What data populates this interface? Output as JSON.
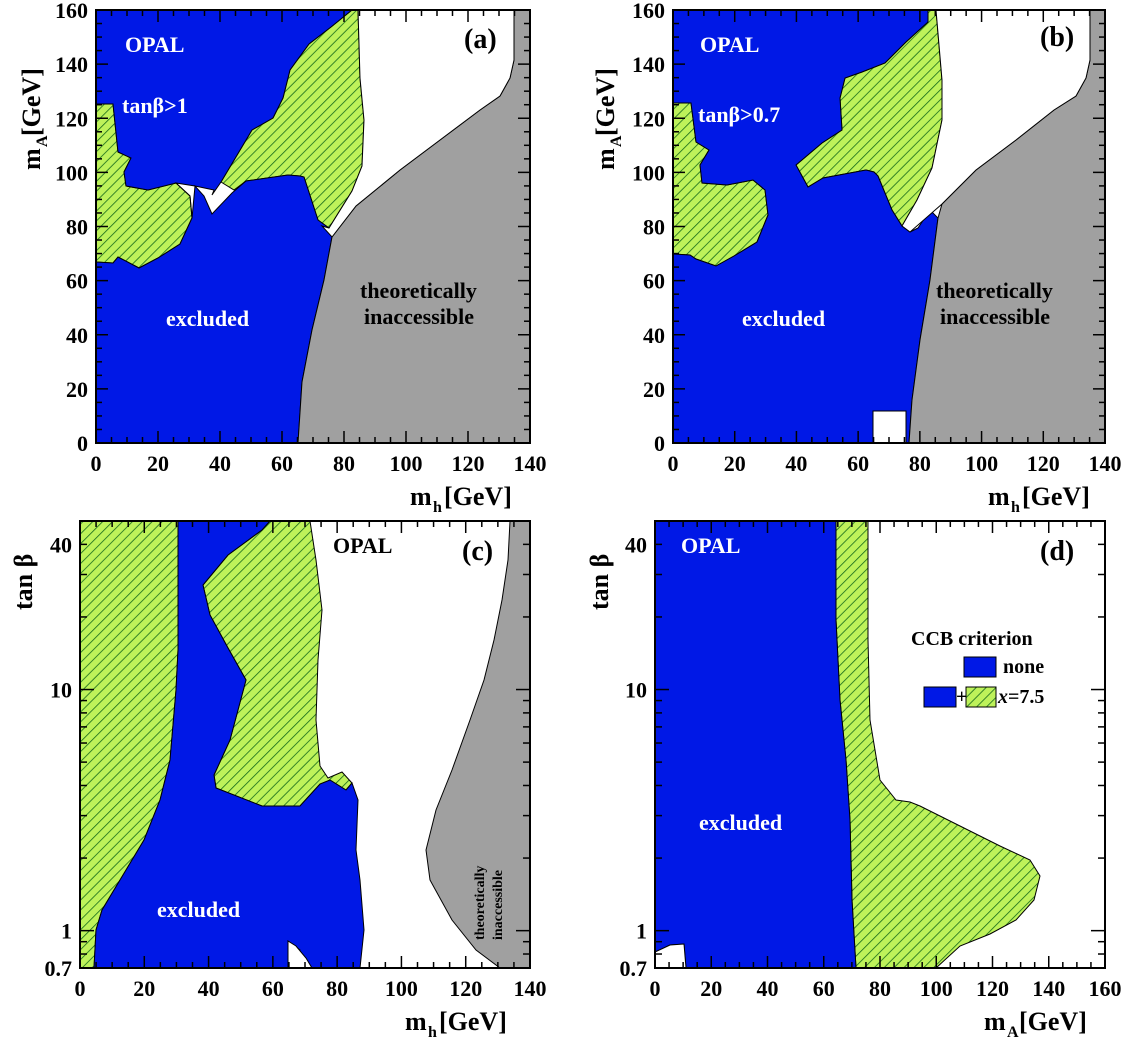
{
  "chart_data": [
    {
      "panel": "(a)",
      "type": "area",
      "x_axis": {
        "label": "m",
        "label_sub": "h",
        "label_unit": "[GeV]",
        "range": [
          0,
          140
        ],
        "ticks": [
          0,
          20,
          40,
          60,
          80,
          100,
          120,
          140
        ]
      },
      "y_axis": {
        "label": "m",
        "label_sub": "A",
        "label_unit": "[GeV]",
        "range": [
          0,
          160
        ],
        "ticks": [
          0,
          20,
          40,
          60,
          80,
          100,
          120,
          140,
          160
        ]
      },
      "annotations": {
        "experiment": "OPAL",
        "condition": "tanβ>1",
        "excluded": "excluded",
        "theory_line1": "theoretically",
        "theory_line2": "inaccessible"
      },
      "regions": [
        {
          "name": "excluded",
          "fill": "blue",
          "points": [
            [
              0,
              0
            ],
            [
              0,
              125
            ],
            [
              6,
              125
            ],
            [
              8,
              107
            ],
            [
              12,
              94
            ],
            [
              30,
              101
            ],
            [
              60,
              99
            ],
            [
              70,
              95
            ],
            [
              76,
              75
            ],
            [
              70,
              60
            ],
            [
              66,
              40
            ],
            [
              64,
              20
            ],
            [
              65,
              0
            ]
          ]
        },
        {
          "name": "excluded",
          "fill": "blue",
          "points": [
            [
              0,
              125
            ],
            [
              0,
              160
            ],
            [
              72,
              160
            ],
            [
              66,
              142
            ],
            [
              40,
              130
            ],
            [
              20,
              116
            ],
            [
              8,
              108
            ],
            [
              6,
              125
            ]
          ]
        },
        {
          "name": "excluded-upper",
          "fill": "blue",
          "points": [
            [
              20,
              160
            ],
            [
              72,
              160
            ],
            [
              72,
              154
            ],
            [
              60,
              150
            ],
            [
              46,
              139
            ],
            [
              28,
              117
            ],
            [
              14,
              98
            ],
            [
              8,
              94
            ],
            [
              4,
              104
            ],
            [
              6,
              125
            ],
            [
              20,
              130
            ]
          ]
        },
        {
          "name": "x=7.5",
          "fill": "hatched",
          "points": [
            [
              0,
              69
            ],
            [
              0,
              125
            ],
            [
              6,
              125
            ],
            [
              8,
              107
            ],
            [
              12,
              94
            ],
            [
              30,
              101
            ],
            [
              60,
              99
            ],
            [
              70,
              95
            ],
            [
              74,
              80
            ],
            [
              66,
              90
            ],
            [
              63,
              100
            ],
            [
              55,
              99
            ],
            [
              52,
              98
            ],
            [
              40,
              91
            ],
            [
              46,
              96
            ],
            [
              50,
              100
            ],
            [
              55,
              101
            ],
            [
              60,
              100
            ],
            [
              70,
              96
            ],
            [
              70,
              60
            ]
          ]
        },
        {
          "name": "x=7.5",
          "fill": "hatched",
          "points": [
            [
              0,
              69
            ],
            [
              6,
              67
            ],
            [
              13,
              64
            ],
            [
              19,
              67
            ],
            [
              28,
              76
            ],
            [
              30,
              87
            ],
            [
              27,
              92
            ],
            [
              16,
              95
            ],
            [
              10,
              96
            ],
            [
              8,
              98
            ],
            [
              10,
              104
            ],
            [
              6,
              110
            ],
            [
              6,
              125
            ],
            [
              0,
              125
            ]
          ]
        },
        {
          "name": "x=7.5",
          "fill": "hatched",
          "points": [
            [
              47,
              92
            ],
            [
              43,
              96
            ],
            [
              60,
              99
            ],
            [
              64,
              99
            ],
            [
              68,
              98
            ],
            [
              70,
              95
            ],
            [
              73,
              79
            ],
            [
              75,
              79
            ],
            [
              78,
              83
            ],
            [
              83,
              91
            ],
            [
              87,
              110
            ],
            [
              86,
              125
            ],
            [
              86,
              160
            ],
            [
              80,
              160
            ],
            [
              75,
              152
            ],
            [
              69,
              143
            ],
            [
              68,
              131
            ],
            [
              64,
              126
            ],
            [
              64,
              113
            ],
            [
              50,
              103
            ],
            [
              47,
              92
            ]
          ]
        },
        {
          "name": "theoretically-inaccessible",
          "fill": "gray",
          "points": [
            [
              65,
              0
            ],
            [
              140,
              0
            ],
            [
              140,
              135
            ],
            [
              134,
              135
            ],
            [
              130,
              124
            ],
            [
              108,
              110
            ],
            [
              86,
              93
            ],
            [
              76,
              75
            ],
            [
              70,
              60
            ],
            [
              66,
              40
            ],
            [
              64,
              20
            ]
          ]
        }
      ]
    },
    {
      "panel": "(b)",
      "type": "area",
      "x_axis": {
        "label": "m",
        "label_sub": "h",
        "label_unit": "[GeV]",
        "range": [
          0,
          140
        ],
        "ticks": [
          0,
          20,
          40,
          60,
          80,
          100,
          120,
          140
        ]
      },
      "y_axis": {
        "label": "m",
        "label_sub": "A",
        "label_unit": "[GeV]",
        "range": [
          0,
          160
        ],
        "ticks": [
          0,
          20,
          40,
          60,
          80,
          100,
          120,
          140,
          160
        ]
      },
      "annotations": {
        "experiment": "OPAL",
        "condition": "tanβ>0.7",
        "excluded": "excluded",
        "theory_line1": "theoretically",
        "theory_line2": "inaccessible"
      }
    },
    {
      "panel": "(c)",
      "type": "area",
      "x_axis": {
        "label": "m",
        "label_sub": "h",
        "label_unit": "[GeV]",
        "range": [
          0,
          140
        ],
        "ticks": [
          0,
          20,
          40,
          60,
          80,
          100,
          120,
          140
        ]
      },
      "y_axis": {
        "label": "tan β",
        "scale": "log",
        "range": [
          0.7,
          50
        ],
        "ticks": [
          0.7,
          1,
          10,
          40
        ],
        "tick_labels": [
          "0.7",
          "1",
          "10",
          "40"
        ]
      },
      "annotations": {
        "experiment": "OPAL",
        "excluded": "excluded",
        "theory_line1": "theoretically",
        "theory_line2": "inaccessible"
      }
    },
    {
      "panel": "(d)",
      "type": "area",
      "x_axis": {
        "label": "m",
        "label_sub": "A",
        "label_unit": "[GeV]",
        "range": [
          0,
          160
        ],
        "ticks": [
          0,
          20,
          40,
          60,
          80,
          100,
          120,
          140,
          160
        ]
      },
      "y_axis": {
        "label": "tan β",
        "scale": "log",
        "range": [
          0.7,
          50
        ],
        "ticks": [
          0.7,
          1,
          10,
          40
        ],
        "tick_labels": [
          "0.7",
          "1",
          "10",
          "40"
        ]
      },
      "annotations": {
        "experiment": "OPAL",
        "excluded": "excluded"
      },
      "legend": {
        "title": "CCB criterion",
        "entries": [
          {
            "label": "none",
            "fill": "blue"
          },
          {
            "label": "x=7.5",
            "label_italic_part": "x",
            "label_rest": "=7.5",
            "fill": "blue+hatched"
          }
        ]
      }
    }
  ],
  "colors": {
    "excluded_blue": "#0018e6",
    "hatch_green": "#bef25a",
    "hatch_line": "#156a1a",
    "theory_gray": "#a0a0a0",
    "frame": "#000000"
  }
}
